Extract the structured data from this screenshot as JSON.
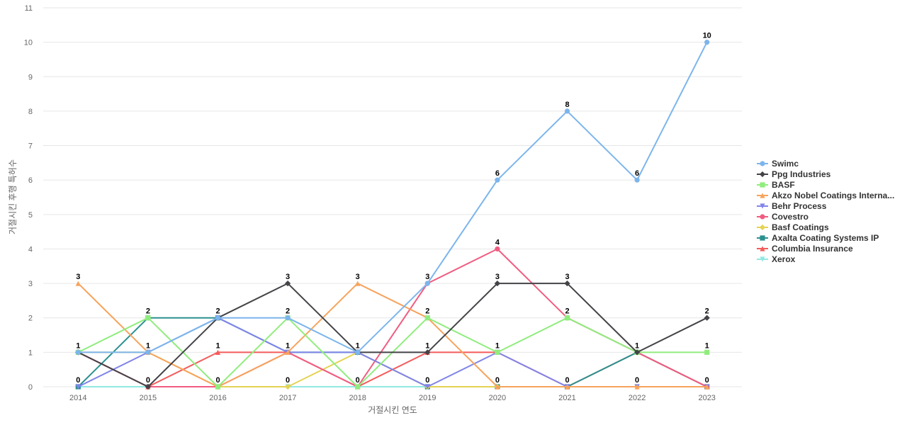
{
  "chart_data": {
    "type": "line",
    "xlabel": "거절시킨 연도",
    "ylabel": "거절시킨 후행 특허수",
    "ylim": [
      0,
      11
    ],
    "yticks": [
      "0",
      "1",
      "2",
      "3",
      "4",
      "5",
      "6",
      "7",
      "8",
      "9",
      "10",
      "11"
    ],
    "categories": [
      "2014",
      "2015",
      "2016",
      "2017",
      "2018",
      "2019",
      "2020",
      "2021",
      "2022",
      "2023"
    ],
    "grid": "horizontal",
    "legend_position": "right",
    "series": [
      {
        "name": "Swimc",
        "color": "#7cb5ec",
        "marker": "circle",
        "values": [
          1,
          1,
          2,
          2,
          1,
          3,
          6,
          8,
          6,
          10
        ]
      },
      {
        "name": "Ppg Industries",
        "color": "#434348",
        "marker": "diamond",
        "values": [
          1,
          0,
          2,
          3,
          1,
          1,
          3,
          3,
          1,
          2
        ]
      },
      {
        "name": "BASF",
        "color": "#90ed7d",
        "marker": "square",
        "values": [
          1,
          2,
          0,
          2,
          0,
          2,
          1,
          2,
          1,
          1
        ]
      },
      {
        "name": "Akzo Nobel Coatings Interna...",
        "color": "#f7a35c",
        "marker": "triangle",
        "values": [
          3,
          1,
          0,
          1,
          3,
          2,
          0,
          0,
          0,
          0
        ]
      },
      {
        "name": "Behr Process",
        "color": "#8085e9",
        "marker": "triangle-down",
        "values": [
          0,
          1,
          2,
          1,
          1,
          0,
          1,
          0,
          0,
          0
        ]
      },
      {
        "name": "Covestro",
        "color": "#f15c80",
        "marker": "circle",
        "values": [
          1,
          0,
          0,
          1,
          0,
          3,
          4,
          2,
          1,
          0
        ]
      },
      {
        "name": "Basf Coatings",
        "color": "#e4d354",
        "marker": "diamond",
        "values": [
          1,
          1,
          0,
          0,
          1,
          0,
          0,
          0,
          0,
          0
        ]
      },
      {
        "name": "Axalta Coating Systems IP",
        "color": "#2b908f",
        "marker": "square",
        "values": [
          0,
          2,
          2,
          1,
          1,
          0,
          0,
          0,
          1,
          0
        ]
      },
      {
        "name": "Columbia Insurance",
        "color": "#f45b5b",
        "marker": "triangle",
        "values": [
          1,
          0,
          1,
          1,
          0,
          1,
          1,
          0,
          1,
          0
        ]
      },
      {
        "name": "Xerox",
        "color": "#91e8e1",
        "marker": "triangle-down",
        "values": [
          0,
          0,
          0,
          0,
          0,
          0,
          0,
          0,
          0,
          0
        ]
      }
    ],
    "data_labels": [
      {
        "category": "2014",
        "value": 3,
        "text": "3"
      },
      {
        "category": "2014",
        "value": 1,
        "text": "1"
      },
      {
        "category": "2014",
        "value": 0,
        "text": "0"
      },
      {
        "category": "2015",
        "value": 2,
        "text": "2"
      },
      {
        "category": "2015",
        "value": 1,
        "text": "1"
      },
      {
        "category": "2015",
        "value": 0,
        "text": "0"
      },
      {
        "category": "2016",
        "value": 2,
        "text": "2"
      },
      {
        "category": "2016",
        "value": 1,
        "text": "1"
      },
      {
        "category": "2016",
        "value": 0,
        "text": "0"
      },
      {
        "category": "2017",
        "value": 3,
        "text": "3"
      },
      {
        "category": "2017",
        "value": 2,
        "text": "2"
      },
      {
        "category": "2017",
        "value": 1,
        "text": "1"
      },
      {
        "category": "2017",
        "value": 0,
        "text": "0"
      },
      {
        "category": "2018",
        "value": 3,
        "text": "3"
      },
      {
        "category": "2018",
        "value": 1,
        "text": "1"
      },
      {
        "category": "2018",
        "value": 0,
        "text": "0"
      },
      {
        "category": "2019",
        "value": 3,
        "text": "3"
      },
      {
        "category": "2019",
        "value": 2,
        "text": "2"
      },
      {
        "category": "2019",
        "value": 1,
        "text": "1"
      },
      {
        "category": "2019",
        "value": 0,
        "text": "0"
      },
      {
        "category": "2020",
        "value": 6,
        "text": "6"
      },
      {
        "category": "2020",
        "value": 4,
        "text": "4"
      },
      {
        "category": "2020",
        "value": 3,
        "text": "3"
      },
      {
        "category": "2020",
        "value": 1,
        "text": "1"
      },
      {
        "category": "2020",
        "value": 0,
        "text": "0"
      },
      {
        "category": "2021",
        "value": 8,
        "text": "8"
      },
      {
        "category": "2021",
        "value": 3,
        "text": "3"
      },
      {
        "category": "2021",
        "value": 2,
        "text": "2"
      },
      {
        "category": "2021",
        "value": 0,
        "text": "0"
      },
      {
        "category": "2022",
        "value": 6,
        "text": "6"
      },
      {
        "category": "2022",
        "value": 1,
        "text": "1"
      },
      {
        "category": "2022",
        "value": 0,
        "text": "0"
      },
      {
        "category": "2023",
        "value": 10,
        "text": "10"
      },
      {
        "category": "2023",
        "value": 2,
        "text": "2"
      },
      {
        "category": "2023",
        "value": 1,
        "text": "1"
      },
      {
        "category": "2023",
        "value": 0,
        "text": "0"
      }
    ]
  }
}
